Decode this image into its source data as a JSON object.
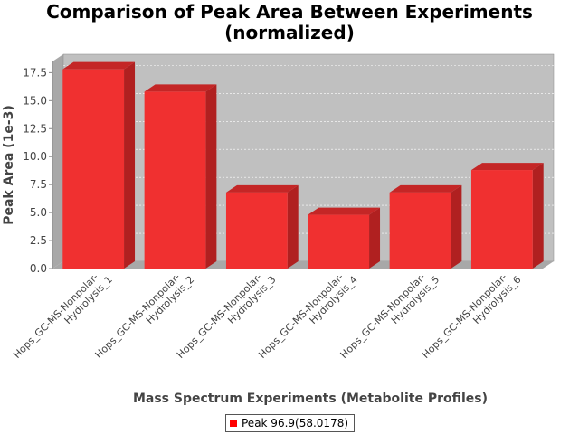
{
  "chart_data": {
    "type": "bar",
    "title": "Comparison of Peak Area Between Experiments\n(normalized)",
    "xlabel": "Mass Spectrum Experiments (Metabolite Profiles)",
    "ylabel": "Peak Area (1e-3)",
    "ylim": [
      0,
      18.5
    ],
    "yticks": [
      "0.0",
      "2.5",
      "5.0",
      "7.5",
      "10.0",
      "12.5",
      "15.0",
      "17.5"
    ],
    "categories": [
      [
        "Hops_GC-MS-Nonpolar-",
        "Hydrolysis_1"
      ],
      [
        "Hops_GC-MS-Nonpolar-",
        "Hydrolysis_2"
      ],
      [
        "Hops_GC-MS-Nonpolar-",
        "Hydrolysis_3"
      ],
      [
        "Hops_GC-MS-Nonpolar-",
        "Hydrolysis_4"
      ],
      [
        "Hops_GC-MS-Nonpolar-",
        "Hydrolysis_5"
      ],
      [
        "Hops_GC-MS-Nonpolar-",
        "Hydrolysis_6"
      ]
    ],
    "series": [
      {
        "name": "Peak 96.9(58.0178)",
        "values": [
          17.8,
          15.8,
          6.8,
          4.8,
          6.8,
          8.8
        ]
      }
    ],
    "grid": true,
    "legend": "bottom",
    "three_d": true,
    "colors": {
      "bar": "#ff0000",
      "plot_background": "#c0c0c0",
      "plot_wall": "#a8a8a8",
      "gridline": "#ffffff"
    }
  }
}
